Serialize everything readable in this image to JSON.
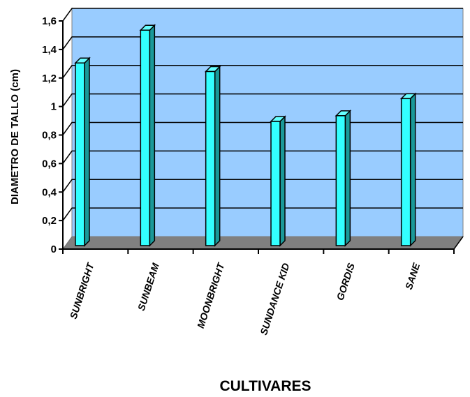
{
  "chart_data": {
    "type": "bar",
    "title": "",
    "xlabel": "CULTIVARES",
    "ylabel": "DIAMETRO DE TALLO (cm)",
    "ylim": [
      0,
      1.6
    ],
    "yticks": [
      "0",
      "0,2",
      "0,4",
      "0,6",
      "0,8",
      "1",
      "1,2",
      "1,4",
      "1,6"
    ],
    "categories": [
      "SUNBRIGHT",
      "SUNBEAM",
      "MOONBRIGHT",
      "SUNDANCE KID",
      "GORDIS",
      "SANE"
    ],
    "values": [
      1.32,
      1.55,
      1.26,
      0.91,
      0.95,
      1.07
    ],
    "grid": true,
    "legend": "none",
    "colors": {
      "wall": "#99ccff",
      "floor": "#808080",
      "bar_front": "#33ffff",
      "bar_side": "#1a9999",
      "bar_top": "#66ffff",
      "gridline": "#000000"
    }
  }
}
